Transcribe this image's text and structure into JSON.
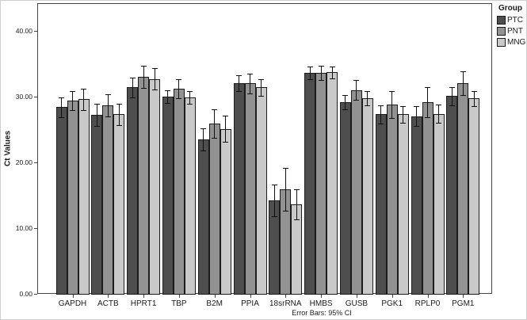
{
  "figure": {
    "footnote": "Error Bars: 95% CI",
    "legend": {
      "title": "Group",
      "items": [
        {
          "label": "PTC",
          "color": "#4e4e4e"
        },
        {
          "label": "PNT",
          "color": "#929292"
        },
        {
          "label": "MNG",
          "color": "#c9c9c9"
        }
      ]
    }
  },
  "chart_data": {
    "type": "bar",
    "title": "",
    "xlabel": "",
    "ylabel": "Ct Values",
    "ylim": [
      0,
      44
    ],
    "yticks": [
      0,
      10,
      20,
      30,
      40
    ],
    "ytick_labels": [
      "0.00",
      "10.00",
      "20.00",
      "30.00",
      "40.00"
    ],
    "grid": false,
    "legend_position": "top-right-outside",
    "error_bars": "95% CI",
    "categories": [
      "GAPDH",
      "ACTB",
      "HPRT1",
      "TBP",
      "B2M",
      "PPIA",
      "18srRNA",
      "HMBS",
      "GUSB",
      "PGK1",
      "RPLP0",
      "PGM1"
    ],
    "series": [
      {
        "name": "PTC",
        "color": "#4e4e4e",
        "values": [
          28.4,
          27.2,
          31.4,
          30.0,
          23.5,
          32.1,
          14.2,
          33.6,
          29.2,
          27.3,
          27.0,
          30.1
        ],
        "ci95": [
          1.5,
          1.7,
          1.5,
          1.0,
          1.7,
          1.2,
          2.4,
          1.0,
          1.1,
          1.4,
          1.5,
          1.4
        ]
      },
      {
        "name": "PNT",
        "color": "#929292",
        "values": [
          29.4,
          28.7,
          33.0,
          31.2,
          25.9,
          32.0,
          15.9,
          33.6,
          31.0,
          28.8,
          29.2,
          32.1
        ],
        "ci95": [
          1.4,
          1.7,
          1.7,
          1.5,
          2.2,
          1.5,
          3.3,
          1.1,
          1.5,
          2.0,
          2.3,
          1.8
        ]
      },
      {
        "name": "MNG",
        "color": "#c9c9c9",
        "values": [
          29.6,
          27.3,
          32.7,
          29.9,
          25.1,
          31.4,
          13.6,
          33.7,
          29.8,
          27.3,
          27.4,
          29.7
        ],
        "ci95": [
          1.6,
          1.6,
          1.6,
          1.0,
          2.0,
          1.3,
          2.3,
          0.9,
          1.1,
          1.3,
          1.4,
          1.2
        ]
      }
    ]
  }
}
